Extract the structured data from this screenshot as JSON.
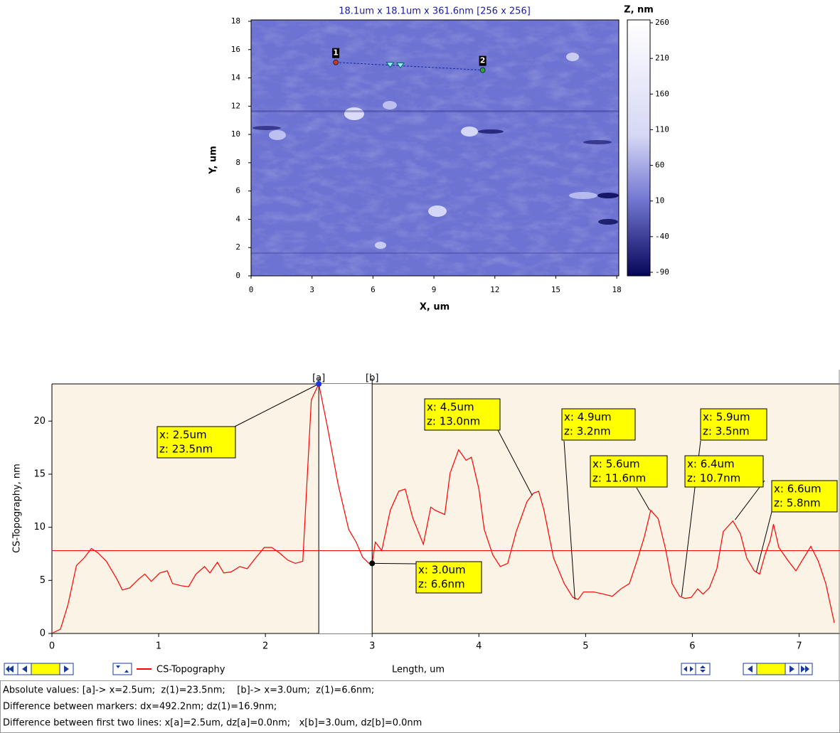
{
  "chart_data": [
    {
      "type": "image",
      "title": "18.1um x 18.1um x 361.6nm [256 x 256]",
      "xlabel": "X, um",
      "ylabel": "Y, um",
      "xlim": [
        0,
        18.1
      ],
      "ylim": [
        0,
        18.1
      ],
      "xticks": [
        0,
        3,
        6,
        9,
        12,
        15,
        18
      ],
      "yticks": [
        0,
        2,
        4,
        6,
        8,
        10,
        12,
        14,
        16,
        18
      ],
      "colorbar": {
        "title": "Z, nm",
        "lim": [
          -95,
          264
        ],
        "ticks": [
          260,
          210,
          160,
          110,
          60,
          10,
          -40,
          -90
        ]
      },
      "points": [
        {
          "label": "1",
          "x": 4.17,
          "y": 15.1,
          "color": "#c0392b"
        },
        {
          "label": "2",
          "x": 11.4,
          "y": 14.55,
          "color": "#2e9e3e"
        }
      ]
    },
    {
      "type": "line",
      "xlabel": "Length, um",
      "ylabel": "CS-Topography, nm",
      "xlim": [
        0,
        7.33
      ],
      "ylim": [
        0,
        23.5
      ],
      "xticks": [
        0,
        1,
        2,
        3,
        4,
        5,
        6,
        7
      ],
      "yticks": [
        0,
        5,
        10,
        15,
        20
      ],
      "x": [
        0.01,
        0.08,
        0.15,
        0.23,
        0.3,
        0.37,
        0.43,
        0.51,
        0.61,
        0.66,
        0.73,
        0.81,
        0.87,
        0.93,
        1.01,
        1.08,
        1.13,
        1.21,
        1.28,
        1.35,
        1.43,
        1.48,
        1.55,
        1.61,
        1.68,
        1.76,
        1.83,
        1.9,
        1.99,
        2.06,
        2.13,
        2.21,
        2.28,
        2.35,
        2.43,
        2.5,
        2.58,
        2.68,
        2.78,
        2.85,
        2.91,
        2.97,
        3.0,
        3.03,
        3.09,
        3.17,
        3.25,
        3.31,
        3.38,
        3.48,
        3.55,
        3.59,
        3.68,
        3.73,
        3.81,
        3.88,
        3.93,
        4.0,
        4.05,
        4.13,
        4.2,
        4.27,
        4.35,
        4.45,
        4.51,
        4.56,
        4.61,
        4.7,
        4.8,
        4.88,
        4.93,
        4.98,
        5.08,
        5.17,
        5.25,
        5.33,
        5.41,
        5.48,
        5.55,
        5.61,
        5.68,
        5.75,
        5.81,
        5.88,
        5.93,
        5.99,
        6.05,
        6.1,
        6.16,
        6.23,
        6.29,
        6.38,
        6.45,
        6.51,
        6.58,
        6.63,
        6.68,
        6.73,
        6.76,
        6.81,
        6.9,
        6.97,
        7.03,
        7.11,
        7.18,
        7.25,
        7.33
      ],
      "series": [
        {
          "name": "CS-Topography",
          "color": "#ff0000",
          "values": [
            0.07,
            0.4,
            2.7,
            6.4,
            7.1,
            8.0,
            7.6,
            6.8,
            5.1,
            4.1,
            4.3,
            5.1,
            5.6,
            4.9,
            5.7,
            5.9,
            4.7,
            4.5,
            4.4,
            5.6,
            6.3,
            5.7,
            6.7,
            5.7,
            5.8,
            6.3,
            6.1,
            7.0,
            8.1,
            8.1,
            7.6,
            6.9,
            6.6,
            6.8,
            22.0,
            23.5,
            19.5,
            14.1,
            9.8,
            8.6,
            7.2,
            6.6,
            6.6,
            8.6,
            7.8,
            11.6,
            13.4,
            13.6,
            10.9,
            8.4,
            11.9,
            11.6,
            11.2,
            15.1,
            17.3,
            16.3,
            16.6,
            13.6,
            9.8,
            7.4,
            6.3,
            6.6,
            9.6,
            12.4,
            13.2,
            13.4,
            11.6,
            7.1,
            4.7,
            3.4,
            3.2,
            3.9,
            3.9,
            3.7,
            3.5,
            4.2,
            4.7,
            6.8,
            9.1,
            11.6,
            10.8,
            7.9,
            4.7,
            3.5,
            3.3,
            3.4,
            4.2,
            3.7,
            4.3,
            6.1,
            9.6,
            10.6,
            9.4,
            7.1,
            5.9,
            5.6,
            7.4,
            8.8,
            10.3,
            8.1,
            6.8,
            5.9,
            6.9,
            8.2,
            6.8,
            4.7,
            1.0
          ]
        }
      ],
      "reference_line": 7.8,
      "cursors": [
        {
          "label": "[a]",
          "x": 2.5
        },
        {
          "label": "[b]",
          "x": 3.0
        }
      ],
      "annotations": [
        {
          "x": 2.5,
          "y": 23.5,
          "text": [
            "x: 2.5um",
            "z: 23.5nm"
          ]
        },
        {
          "x": 3.0,
          "y": 6.6,
          "text": [
            "x: 3.0um",
            "z: 6.6nm"
          ]
        },
        {
          "x": 4.5,
          "y": 13.0,
          "text": [
            "x: 4.5um",
            "z: 13.0nm"
          ]
        },
        {
          "x": 4.9,
          "y": 3.2,
          "text": [
            "x: 4.9um",
            "z: 3.2nm"
          ]
        },
        {
          "x": 5.6,
          "y": 11.6,
          "text": [
            "x: 5.6um",
            "z: 11.6nm"
          ]
        },
        {
          "x": 5.9,
          "y": 3.5,
          "text": [
            "x: 5.9um",
            "z: 3.5nm"
          ]
        },
        {
          "x": 6.4,
          "y": 10.7,
          "text": [
            "x: 6.4um",
            "z: 10.7nm"
          ]
        },
        {
          "x": 6.6,
          "y": 5.8,
          "text": [
            "x: 6.6um",
            "z: 5.8nm"
          ]
        }
      ]
    }
  ],
  "status": [
    "Absolute values: [a]-> x=2.5um;  z(1)=23.5nm;    [b]-> x=3.0um;  z(1)=6.6nm;",
    "Difference between markers: dx=492.2nm; dz(1)=16.9nm;",
    "Difference between first two lines: x[a]=2.5um, dz[a]=0.0nm;   x[b]=3.0um, dz[b]=0.0nm"
  ]
}
